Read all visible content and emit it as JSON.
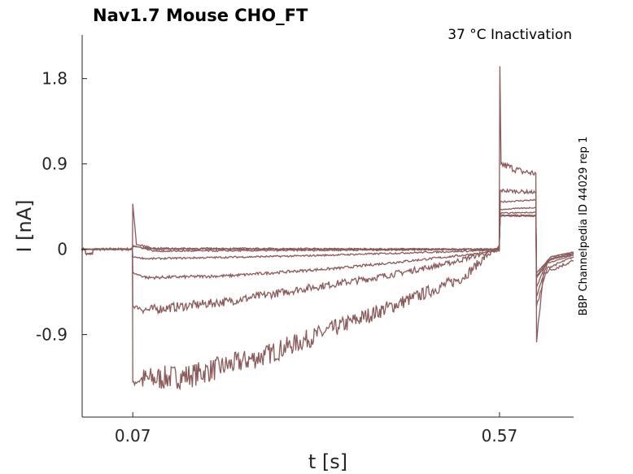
{
  "chart_data": {
    "type": "line",
    "title": "Nav1.7  Mouse  CHO_FT",
    "annotation": "37 °C  Inactivation",
    "side_label": "BBP Channelpedia ID 44029 rep 1",
    "xlabel": "t [s]",
    "ylabel": "I [nA]",
    "xlim": [
      0.001,
      0.671
    ],
    "ylim": [
      -1.77,
      2.26
    ],
    "xticks": [
      0.07,
      0.57
    ],
    "xtick_labels": [
      "0.07",
      "0.57"
    ],
    "yticks": [
      1.8,
      0.9,
      0,
      -0.9
    ],
    "ytick_labels": [
      "1.8",
      "0.9",
      "0",
      "-0.9"
    ],
    "color": "#8b5a5a",
    "series": [
      {
        "name": "trace-1",
        "noise": 0.035,
        "points": [
          [
            0,
            0
          ],
          [
            0.005,
            0
          ],
          [
            0.006,
            -0.05
          ],
          [
            0.015,
            -0.05
          ],
          [
            0.016,
            0
          ],
          [
            0.0695,
            0
          ],
          [
            0.07,
            -1.4
          ],
          [
            0.08,
            -1.38
          ],
          [
            0.15,
            -1.33
          ],
          [
            0.25,
            -1.12
          ],
          [
            0.35,
            -0.82
          ],
          [
            0.45,
            -0.52
          ],
          [
            0.52,
            -0.3
          ],
          [
            0.555,
            -0.05
          ],
          [
            0.5695,
            0
          ],
          [
            0.5705,
            1.93
          ],
          [
            0.572,
            0.9
          ],
          [
            0.6,
            0.82
          ],
          [
            0.6195,
            0.8
          ],
          [
            0.6205,
            -0.98
          ],
          [
            0.63,
            -0.25
          ],
          [
            0.671,
            -0.12
          ]
        ]
      },
      {
        "name": "trace-2",
        "noise": 0.022,
        "points": [
          [
            0,
            0
          ],
          [
            0.005,
            0
          ],
          [
            0.006,
            -0.05
          ],
          [
            0.015,
            -0.05
          ],
          [
            0.016,
            0
          ],
          [
            0.0695,
            0
          ],
          [
            0.07,
            -0.6
          ],
          [
            0.09,
            -0.64
          ],
          [
            0.2,
            -0.55
          ],
          [
            0.3,
            -0.42
          ],
          [
            0.4,
            -0.3
          ],
          [
            0.5,
            -0.15
          ],
          [
            0.56,
            -0.02
          ],
          [
            0.5695,
            0
          ],
          [
            0.571,
            0.62
          ],
          [
            0.6195,
            0.6
          ],
          [
            0.6205,
            -0.6
          ],
          [
            0.635,
            -0.2
          ],
          [
            0.671,
            -0.08
          ]
        ]
      },
      {
        "name": "trace-3",
        "noise": 0.01,
        "points": [
          [
            0,
            0
          ],
          [
            0.0695,
            0
          ],
          [
            0.07,
            -0.25
          ],
          [
            0.09,
            -0.3
          ],
          [
            0.2,
            -0.28
          ],
          [
            0.35,
            -0.2
          ],
          [
            0.5,
            -0.08
          ],
          [
            0.5695,
            -0.02
          ],
          [
            0.571,
            0.5
          ],
          [
            0.6195,
            0.52
          ],
          [
            0.6205,
            -0.5
          ],
          [
            0.635,
            -0.15
          ],
          [
            0.671,
            -0.06
          ]
        ]
      },
      {
        "name": "trace-4",
        "noise": 0.008,
        "points": [
          [
            0,
            0
          ],
          [
            0.0695,
            0
          ],
          [
            0.07,
            -0.08
          ],
          [
            0.09,
            -0.1
          ],
          [
            0.3,
            -0.07
          ],
          [
            0.5695,
            -0.01
          ],
          [
            0.571,
            0.42
          ],
          [
            0.6195,
            0.44
          ],
          [
            0.6205,
            -0.4
          ],
          [
            0.635,
            -0.12
          ],
          [
            0.671,
            -0.05
          ]
        ]
      },
      {
        "name": "trace-5",
        "noise": 0.008,
        "points": [
          [
            0,
            0
          ],
          [
            0.0695,
            0
          ],
          [
            0.07,
            0.04
          ],
          [
            0.1,
            -0.02
          ],
          [
            0.5695,
            0
          ],
          [
            0.571,
            0.38
          ],
          [
            0.6195,
            0.39
          ],
          [
            0.6205,
            -0.3
          ],
          [
            0.64,
            -0.1
          ],
          [
            0.671,
            -0.04
          ]
        ]
      },
      {
        "name": "trace-6",
        "noise": 0.008,
        "points": [
          [
            0,
            0
          ],
          [
            0.0695,
            0
          ],
          [
            0.07,
            0.48
          ],
          [
            0.075,
            0.05
          ],
          [
            0.1,
            0.01
          ],
          [
            0.5695,
            0
          ],
          [
            0.571,
            0.36
          ],
          [
            0.6195,
            0.36
          ],
          [
            0.6205,
            -0.28
          ],
          [
            0.64,
            -0.08
          ],
          [
            0.671,
            -0.03
          ]
        ]
      },
      {
        "name": "trace-7",
        "noise": 0.008,
        "points": [
          [
            0,
            0
          ],
          [
            0.0695,
            0
          ],
          [
            0.07,
            0.03
          ],
          [
            0.1,
            0.0
          ],
          [
            0.5695,
            0
          ],
          [
            0.571,
            0.35
          ],
          [
            0.6195,
            0.35
          ],
          [
            0.6205,
            -0.25
          ],
          [
            0.64,
            -0.08
          ],
          [
            0.671,
            -0.03
          ]
        ]
      }
    ]
  }
}
